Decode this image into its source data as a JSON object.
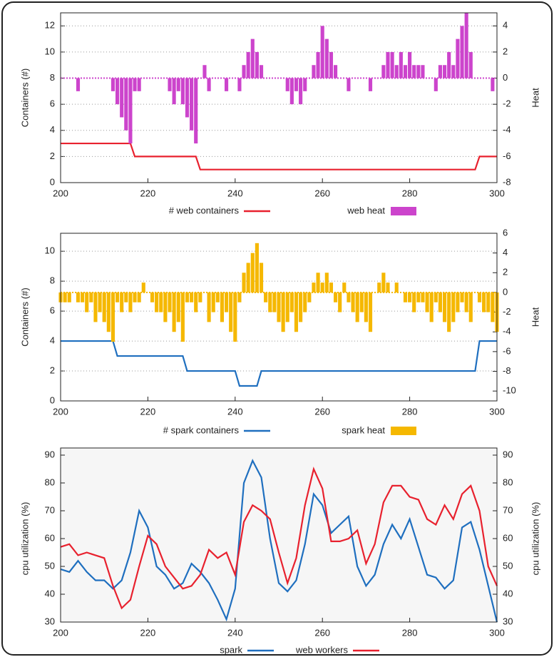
{
  "chart_data": [
    {
      "type": "combo",
      "ylabel": "Containers (#)",
      "y2label": "Heat",
      "x": [
        200,
        201,
        202,
        203,
        204,
        205,
        206,
        207,
        208,
        209,
        210,
        211,
        212,
        213,
        214,
        215,
        216,
        217,
        218,
        219,
        220,
        221,
        222,
        223,
        224,
        225,
        226,
        227,
        228,
        229,
        230,
        231,
        232,
        233,
        234,
        235,
        236,
        237,
        238,
        239,
        240,
        241,
        242,
        243,
        244,
        245,
        246,
        247,
        248,
        249,
        250,
        251,
        252,
        253,
        254,
        255,
        256,
        257,
        258,
        259,
        260,
        261,
        262,
        263,
        264,
        265,
        266,
        267,
        268,
        269,
        270,
        271,
        272,
        273,
        274,
        275,
        276,
        277,
        278,
        279,
        280,
        281,
        282,
        283,
        284,
        285,
        286,
        287,
        288,
        289,
        290,
        291,
        292,
        293,
        294,
        295,
        296,
        297,
        298,
        299,
        300
      ],
      "xlim": [
        200,
        300
      ],
      "xticks": [
        200,
        220,
        240,
        260,
        280,
        300
      ],
      "ylim": [
        0,
        13
      ],
      "yticks": [
        0,
        2,
        4,
        6,
        8,
        10,
        12
      ],
      "y2lim": [
        -8,
        5
      ],
      "y2ticks": [
        -8,
        -6,
        -4,
        -2,
        0,
        2,
        4
      ],
      "grid": true,
      "series": [
        {
          "name": "# web containers",
          "type": "line",
          "color": "#e8212e",
          "values": [
            3,
            3,
            3,
            3,
            3,
            3,
            3,
            3,
            3,
            3,
            3,
            3,
            3,
            3,
            3,
            3,
            3,
            2,
            2,
            2,
            2,
            2,
            2,
            2,
            2,
            2,
            2,
            2,
            2,
            2,
            2,
            2,
            1,
            1,
            1,
            1,
            1,
            1,
            1,
            1,
            1,
            1,
            1,
            1,
            1,
            1,
            1,
            1,
            1,
            1,
            1,
            1,
            1,
            1,
            1,
            1,
            1,
            1,
            1,
            1,
            1,
            1,
            1,
            1,
            1,
            1,
            1,
            1,
            1,
            1,
            1,
            1,
            1,
            1,
            1,
            1,
            1,
            1,
            1,
            1,
            1,
            1,
            1,
            1,
            1,
            1,
            1,
            1,
            1,
            1,
            1,
            1,
            1,
            1,
            1,
            1,
            2,
            2,
            2,
            2,
            2
          ]
        },
        {
          "name": "web heat",
          "type": "bar",
          "axis": "y2",
          "color": "#cc44cc",
          "values": [
            0,
            0,
            0,
            0,
            -1,
            0,
            0,
            0,
            0,
            0,
            0,
            0,
            -1,
            -2,
            -3,
            -4,
            -5,
            -1,
            -1,
            0,
            0,
            0,
            0,
            0,
            0,
            -1,
            -2,
            -1,
            -2,
            -3,
            -4,
            -5,
            0,
            1,
            -1,
            0,
            0,
            0,
            -1,
            0,
            0,
            -1,
            1,
            2,
            3,
            2,
            1,
            0,
            0,
            0,
            0,
            0,
            -1,
            -2,
            -1,
            -2,
            -1,
            0,
            1,
            2,
            4,
            3,
            2,
            1,
            0,
            0,
            -1,
            0,
            0,
            0,
            0,
            -1,
            0,
            0,
            1,
            2,
            2,
            1,
            2,
            1,
            2,
            1,
            1,
            1,
            0,
            0,
            -1,
            1,
            1,
            2,
            1,
            3,
            4,
            5,
            2,
            0,
            0,
            0,
            0,
            -1,
            0
          ]
        }
      ]
    },
    {
      "type": "combo",
      "ylabel": "Containers (#)",
      "y2label": "Heat",
      "x": [
        200,
        201,
        202,
        203,
        204,
        205,
        206,
        207,
        208,
        209,
        210,
        211,
        212,
        213,
        214,
        215,
        216,
        217,
        218,
        219,
        220,
        221,
        222,
        223,
        224,
        225,
        226,
        227,
        228,
        229,
        230,
        231,
        232,
        233,
        234,
        235,
        236,
        237,
        238,
        239,
        240,
        241,
        242,
        243,
        244,
        245,
        246,
        247,
        248,
        249,
        250,
        251,
        252,
        253,
        254,
        255,
        256,
        257,
        258,
        259,
        260,
        261,
        262,
        263,
        264,
        265,
        266,
        267,
        268,
        269,
        270,
        271,
        272,
        273,
        274,
        275,
        276,
        277,
        278,
        279,
        280,
        281,
        282,
        283,
        284,
        285,
        286,
        287,
        288,
        289,
        290,
        291,
        292,
        293,
        294,
        295,
        296,
        297,
        298,
        299,
        300
      ],
      "xlim": [
        200,
        300
      ],
      "xticks": [
        200,
        220,
        240,
        260,
        280,
        300
      ],
      "ylim": [
        0,
        11.2
      ],
      "yticks": [
        0,
        2,
        4,
        6,
        8,
        10
      ],
      "y2lim": [
        -11,
        6
      ],
      "y2ticks": [
        -10,
        -8,
        -6,
        -4,
        -2,
        0,
        2,
        4,
        6
      ],
      "grid": true,
      "series": [
        {
          "name": "# spark containers",
          "type": "line",
          "color": "#1f6fbf",
          "values": [
            4,
            4,
            4,
            4,
            4,
            4,
            4,
            4,
            4,
            4,
            4,
            4,
            4,
            3,
            3,
            3,
            3,
            3,
            3,
            3,
            3,
            3,
            3,
            3,
            3,
            3,
            3,
            3,
            3,
            2,
            2,
            2,
            2,
            2,
            2,
            2,
            2,
            2,
            2,
            2,
            2,
            1,
            1,
            1,
            1,
            1,
            2,
            2,
            2,
            2,
            2,
            2,
            2,
            2,
            2,
            2,
            2,
            2,
            2,
            2,
            2,
            2,
            2,
            2,
            2,
            2,
            2,
            2,
            2,
            2,
            2,
            2,
            2,
            2,
            2,
            2,
            2,
            2,
            2,
            2,
            2,
            2,
            2,
            2,
            2,
            2,
            2,
            2,
            2,
            2,
            2,
            2,
            2,
            2,
            2,
            2,
            4,
            4,
            4,
            4,
            4
          ]
        },
        {
          "name": "spark heat",
          "type": "bar",
          "axis": "y2",
          "color": "#f5b800",
          "values": [
            -1,
            -1,
            -1,
            0,
            -1,
            -1,
            -2,
            -1,
            -3,
            -2,
            -3,
            -4,
            -5,
            -1,
            -2,
            -1,
            -2,
            -1,
            -1,
            1,
            0,
            -1,
            -2,
            -2,
            -3,
            -2,
            -4,
            -3,
            -5,
            -1,
            -1,
            -2,
            -1,
            0,
            -3,
            -2,
            -1,
            -3,
            -2,
            -4,
            -5,
            -1,
            2,
            3,
            4,
            5,
            3,
            -1,
            -2,
            -2,
            -3,
            -4,
            -3,
            -2,
            -4,
            -3,
            -2,
            -1,
            1,
            2,
            1,
            2,
            1,
            -1,
            -2,
            1,
            -1,
            -2,
            -3,
            -2,
            -3,
            -4,
            0,
            1,
            2,
            1,
            0,
            1,
            0,
            -1,
            -1,
            -2,
            -1,
            -1,
            -2,
            -3,
            -1,
            -2,
            -3,
            -4,
            -3,
            -2,
            -1,
            -2,
            -3,
            0,
            -1,
            -2,
            -2,
            -3,
            -4
          ]
        }
      ]
    },
    {
      "type": "line",
      "ylabel": "cpu utilization (%)",
      "y2label": "cpu utilization (%)",
      "x": [
        200,
        202,
        204,
        206,
        208,
        210,
        212,
        214,
        216,
        218,
        220,
        222,
        224,
        226,
        228,
        230,
        232,
        234,
        236,
        238,
        240,
        242,
        244,
        246,
        248,
        250,
        252,
        254,
        256,
        258,
        260,
        262,
        264,
        266,
        268,
        270,
        272,
        274,
        276,
        278,
        280,
        282,
        284,
        286,
        288,
        290,
        292,
        294,
        296,
        298,
        300
      ],
      "xlim": [
        200,
        300
      ],
      "xticks": [
        200,
        220,
        240,
        260,
        280,
        300
      ],
      "ylim": [
        30,
        90
      ],
      "yticks": [
        30,
        40,
        50,
        60,
        70,
        80,
        90
      ],
      "y2lim": [
        30,
        90
      ],
      "y2ticks": [
        30,
        40,
        50,
        60,
        70,
        80,
        90
      ],
      "grid": false,
      "series": [
        {
          "name": "spark",
          "type": "line",
          "color": "#1f6fbf",
          "values": [
            49,
            48,
            52,
            48,
            45,
            45,
            42,
            45,
            55,
            70,
            64,
            50,
            47,
            42,
            44,
            51,
            48,
            44,
            38,
            31,
            42,
            80,
            88,
            82,
            60,
            44,
            41,
            45,
            58,
            76,
            72,
            62,
            65,
            68,
            50,
            43,
            47,
            58,
            65,
            60,
            67,
            57,
            47,
            46,
            42,
            45,
            64,
            66,
            56,
            43,
            30
          ]
        },
        {
          "name": "web workers",
          "type": "line",
          "color": "#e8212e",
          "values": [
            57,
            58,
            54,
            55,
            54,
            53,
            43,
            35,
            38,
            50,
            61,
            58,
            50,
            46,
            42,
            43,
            47,
            56,
            53,
            55,
            47,
            66,
            72,
            70,
            67,
            55,
            44,
            53,
            72,
            85,
            78,
            59,
            59,
            60,
            63,
            51,
            58,
            73,
            79,
            79,
            75,
            74,
            67,
            65,
            72,
            67,
            76,
            79,
            70,
            50,
            43
          ]
        }
      ]
    }
  ]
}
